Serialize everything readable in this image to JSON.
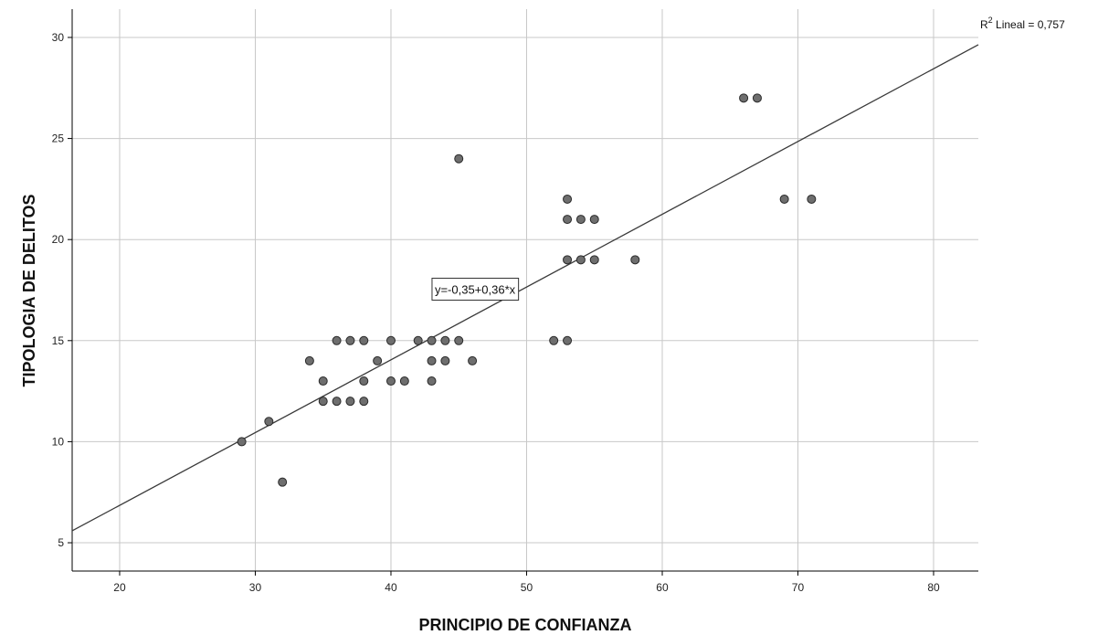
{
  "chart_data": {
    "type": "scatter",
    "xlabel": "PRINCIPIO DE CONFIANZA",
    "ylabel": "TIPOLOGIA DE DELITOS",
    "xlim": [
      16.5,
      83.3
    ],
    "ylim": [
      3.6,
      31.4
    ],
    "xticks": [
      20,
      30,
      40,
      50,
      60,
      70,
      80
    ],
    "yticks": [
      5,
      10,
      15,
      20,
      25,
      30
    ],
    "grid": true,
    "points": [
      {
        "x": 29,
        "y": 10
      },
      {
        "x": 31,
        "y": 11
      },
      {
        "x": 32,
        "y": 8
      },
      {
        "x": 34,
        "y": 14
      },
      {
        "x": 35,
        "y": 13
      },
      {
        "x": 35,
        "y": 12
      },
      {
        "x": 36,
        "y": 15
      },
      {
        "x": 36,
        "y": 12
      },
      {
        "x": 37,
        "y": 15
      },
      {
        "x": 37,
        "y": 12
      },
      {
        "x": 38,
        "y": 15
      },
      {
        "x": 38,
        "y": 13
      },
      {
        "x": 38,
        "y": 12
      },
      {
        "x": 39,
        "y": 14
      },
      {
        "x": 40,
        "y": 15
      },
      {
        "x": 40,
        "y": 13
      },
      {
        "x": 41,
        "y": 13
      },
      {
        "x": 42,
        "y": 15
      },
      {
        "x": 43,
        "y": 15
      },
      {
        "x": 43,
        "y": 14
      },
      {
        "x": 43,
        "y": 13
      },
      {
        "x": 44,
        "y": 15
      },
      {
        "x": 44,
        "y": 14
      },
      {
        "x": 45,
        "y": 15
      },
      {
        "x": 45,
        "y": 24
      },
      {
        "x": 46,
        "y": 14
      },
      {
        "x": 52,
        "y": 15
      },
      {
        "x": 53,
        "y": 15
      },
      {
        "x": 53,
        "y": 22
      },
      {
        "x": 53,
        "y": 21
      },
      {
        "x": 53,
        "y": 19
      },
      {
        "x": 54,
        "y": 21
      },
      {
        "x": 54,
        "y": 19
      },
      {
        "x": 55,
        "y": 21
      },
      {
        "x": 55,
        "y": 19
      },
      {
        "x": 58,
        "y": 19
      },
      {
        "x": 66,
        "y": 27
      },
      {
        "x": 67,
        "y": 27
      },
      {
        "x": 69,
        "y": 22
      },
      {
        "x": 71,
        "y": 22
      }
    ],
    "fit_line": {
      "intercept": -0.35,
      "slope": 0.36
    },
    "equation_label": "y=-0,35+0,36*x",
    "equation_anchor": {
      "x": 46.2,
      "y": 17.5
    },
    "r2_label": {
      "prefix": "R",
      "sup": "2",
      "suffix": " Lineal = 0,757"
    },
    "colors": {
      "point_fill": "#6e6e6e",
      "point_stroke": "#2a2a2a",
      "grid": "#c8c8c8",
      "axis": "#000000",
      "line": "#3a3a3a"
    }
  }
}
